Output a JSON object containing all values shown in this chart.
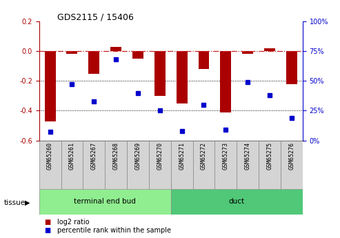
{
  "title": "GDS2115 / 15406",
  "samples": [
    "GSM65260",
    "GSM65261",
    "GSM65267",
    "GSM65268",
    "GSM65269",
    "GSM65270",
    "GSM65271",
    "GSM65272",
    "GSM65273",
    "GSM65274",
    "GSM65275",
    "GSM65276"
  ],
  "log2_ratio": [
    -0.47,
    -0.02,
    -0.15,
    0.03,
    -0.05,
    -0.3,
    -0.35,
    -0.12,
    -0.41,
    -0.02,
    0.02,
    -0.22
  ],
  "percentile_rank": [
    7,
    47,
    33,
    68,
    40,
    25,
    8,
    30,
    9,
    49,
    38,
    19
  ],
  "groups": [
    {
      "label": "terminal end bud",
      "start": 0,
      "end": 6,
      "color": "#90ee90"
    },
    {
      "label": "duct",
      "start": 6,
      "end": 12,
      "color": "#50c878"
    }
  ],
  "ylim_left": [
    -0.6,
    0.2
  ],
  "ylim_right": [
    0,
    100
  ],
  "yticks_left": [
    -0.6,
    -0.4,
    -0.2,
    0.0,
    0.2
  ],
  "yticks_right": [
    0,
    25,
    50,
    75,
    100
  ],
  "bar_color": "#aa0000",
  "dot_color": "#0000cc",
  "hline_color": "#cc2222",
  "grid_color": "#000000",
  "tissue_label": "tissue",
  "legend_bar": "log2 ratio",
  "legend_dot": "percentile rank within the sample",
  "bar_width": 0.5
}
